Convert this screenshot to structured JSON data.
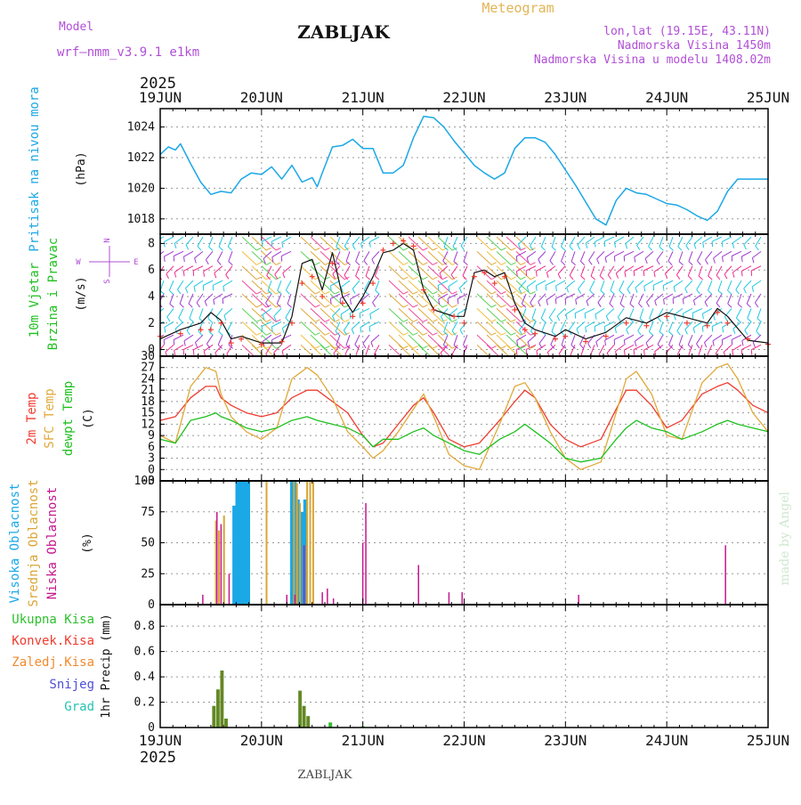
{
  "header": {
    "model_label": "Model",
    "model_value": "wrf—nmm_v3.9.1  e1km",
    "station": "ZABLJAK",
    "product": "Meteogram",
    "coords": "lon,lat (19.15E, 43.11N)",
    "altitude": "Nadmorska Visina 1450m",
    "model_altitude": "Nadmorska Visina u modelu 1408.02m",
    "year_top": "2025",
    "year_bottom": "2025",
    "footer_station": "ZABLJAK",
    "credit": "made by Angel"
  },
  "colors": {
    "purple": "#b14fd6",
    "gold": "#e2b455",
    "pressure": "#1ba8e6",
    "t2m": "#ef3b2f",
    "sfc": "#e0a93a",
    "dew": "#1ec01e",
    "cloud_high": "#1ba8e6",
    "cloud_mid": "#d9a635",
    "cloud_low": "#c4168e",
    "precip_total": "#2ec02e",
    "precip_conv": "#ef3b2f",
    "precip_frozen": "#f08a2c",
    "snow": "#4e4ed8",
    "graupel": "#25c3b3"
  },
  "panel_labels": {
    "pressure": [
      "Pritisak na nivou mora",
      "(hPa)"
    ],
    "wind": [
      "10m Vjetar",
      "Brzina i Pravac",
      "(m/s)"
    ],
    "compass": [
      "N",
      "S",
      "W",
      "E"
    ],
    "temp": [
      "2m Temp",
      "SFC Temp",
      "dewpt Temp",
      "(C)"
    ],
    "cloud": [
      "Visoka Oblacnost",
      "Srednja Oblacnost",
      "Niska Oblacnost",
      "(%)"
    ],
    "precip": [
      "Ukupna Kisa",
      "Konvek.Kisa",
      "Zaledj.Kisa",
      "Snijeg",
      "Grad",
      "1hr Precip (mm)"
    ]
  },
  "chart_data": [
    {
      "type": "line",
      "name": "pressure",
      "xlabel": "",
      "ylabel": "(hPa)",
      "x_categories": [
        "19JUN",
        "20JUN",
        "21JUN",
        "22JUN",
        "23JUN",
        "24JUN",
        "25JUN"
      ],
      "yticks": [
        1018,
        1020,
        1022,
        1024
      ],
      "ylim": [
        1017,
        1025.2
      ],
      "x_days": [
        0,
        0.08,
        0.15,
        0.2,
        0.3,
        0.4,
        0.5,
        0.6,
        0.7,
        0.8,
        0.9,
        1.0,
        1.1,
        1.2,
        1.3,
        1.4,
        1.5,
        1.55,
        1.6,
        1.7,
        1.8,
        1.9,
        2.0,
        2.1,
        2.2,
        2.3,
        2.4,
        2.5,
        2.6,
        2.7,
        2.8,
        2.9,
        3.0,
        3.1,
        3.2,
        3.3,
        3.4,
        3.5,
        3.6,
        3.7,
        3.8,
        3.9,
        4.0,
        4.1,
        4.2,
        4.3,
        4.4,
        4.5,
        4.6,
        4.7,
        4.8,
        4.9,
        5.0,
        5.1,
        5.2,
        5.3,
        5.4,
        5.5,
        5.6,
        5.7,
        5.8,
        5.9,
        6.0
      ],
      "series": [
        {
          "values": [
            1022.2,
            1022.7,
            1022.5,
            1022.9,
            1021.6,
            1020.4,
            1019.6,
            1019.8,
            1019.7,
            1020.6,
            1021.0,
            1020.9,
            1021.4,
            1020.6,
            1021.5,
            1020.4,
            1020.7,
            1020.1,
            1021.0,
            1022.7,
            1022.8,
            1023.2,
            1022.6,
            1022.6,
            1021.0,
            1021.0,
            1021.5,
            1023.3,
            1024.7,
            1024.6,
            1024.0,
            1023.1,
            1022.3,
            1021.5,
            1021.0,
            1020.6,
            1021.0,
            1022.6,
            1023.3,
            1023.3,
            1023.0,
            1022.2,
            1021.2,
            1020.2,
            1019.1,
            1018.0,
            1017.6,
            1019.2,
            1020.0,
            1019.7,
            1019.6,
            1019.3,
            1019.0,
            1018.9,
            1018.6,
            1018.2,
            1017.9,
            1018.5,
            1019.8,
            1020.6,
            1020.6,
            1020.6,
            1020.6
          ]
        }
      ]
    },
    {
      "type": "line",
      "name": "wind_speed",
      "xlabel": "",
      "ylabel": "(m/s)",
      "yticks": [
        0,
        2,
        4,
        6,
        8
      ],
      "ylim": [
        -0.5,
        8.7
      ],
      "x_days": [
        0,
        0.2,
        0.4,
        0.5,
        0.6,
        0.7,
        0.8,
        1.0,
        1.2,
        1.3,
        1.4,
        1.5,
        1.6,
        1.7,
        1.8,
        1.9,
        2.0,
        2.1,
        2.2,
        2.3,
        2.4,
        2.5,
        2.6,
        2.7,
        2.9,
        3.0,
        3.1,
        3.2,
        3.3,
        3.4,
        3.5,
        3.6,
        3.7,
        3.9,
        4.0,
        4.2,
        4.4,
        4.6,
        4.8,
        5.0,
        5.2,
        5.4,
        5.5,
        5.6,
        5.8,
        6.0
      ],
      "series": [
        {
          "name": "speed",
          "values": [
            0.8,
            1.5,
            2.0,
            2.8,
            2.2,
            0.8,
            1.0,
            0.5,
            0.5,
            2.5,
            6.5,
            6.8,
            4.5,
            7.3,
            4.0,
            2.8,
            4.0,
            5.5,
            7.3,
            7.5,
            8.0,
            7.5,
            4.5,
            3.0,
            2.5,
            2.5,
            5.8,
            6.0,
            5.5,
            5.8,
            3.5,
            2.0,
            1.5,
            1.0,
            1.5,
            0.8,
            1.3,
            2.4,
            2.0,
            2.8,
            2.4,
            2.0,
            3.1,
            2.5,
            0.7,
            0.5
          ]
        },
        {
          "name": "gust",
          "values": [
            1.0,
            1.2,
            1.5,
            1.5,
            2.0,
            0.5,
            0.8,
            0.4,
            0.6,
            2.0,
            5.0,
            5.5,
            4.0,
            6.5,
            3.5,
            2.5,
            3.5,
            5.0,
            7.5,
            8.0,
            8.2,
            7.8,
            4.5,
            3.0,
            2.5,
            2.0,
            5.5,
            5.8,
            5.0,
            5.5,
            3.0,
            1.5,
            1.2,
            0.8,
            1.0,
            0.6,
            1.0,
            2.0,
            1.8,
            2.5,
            2.0,
            1.8,
            2.8,
            2.0,
            0.8,
            0.4
          ]
        }
      ]
    },
    {
      "type": "line",
      "name": "temperature",
      "xlabel": "",
      "ylabel": "(C)",
      "yticks": [
        -3,
        0,
        3,
        6,
        9,
        12,
        15,
        18,
        21,
        24,
        27,
        30
      ],
      "ylim": [
        -3,
        30
      ],
      "x_days": [
        0,
        0.15,
        0.3,
        0.45,
        0.55,
        0.6,
        0.7,
        0.85,
        1.0,
        1.15,
        1.3,
        1.45,
        1.55,
        1.7,
        1.85,
        2.0,
        2.1,
        2.2,
        2.35,
        2.5,
        2.6,
        2.7,
        2.85,
        3.0,
        3.15,
        3.35,
        3.5,
        3.6,
        3.7,
        3.85,
        4.0,
        4.15,
        4.35,
        4.5,
        4.6,
        4.7,
        4.85,
        5.0,
        5.15,
        5.35,
        5.5,
        5.6,
        5.7,
        5.85,
        6.0
      ],
      "series": [
        {
          "name": "2m Temp",
          "values": [
            13,
            14,
            19,
            22,
            22,
            19,
            17,
            15,
            14,
            15,
            19,
            21,
            21,
            18,
            15,
            9,
            6,
            7,
            12,
            17,
            19,
            15,
            8,
            6,
            7,
            13,
            18,
            21,
            19,
            12,
            8,
            6,
            8,
            16,
            21,
            21,
            17,
            11,
            13,
            20,
            22,
            23,
            21,
            17,
            15
          ]
        },
        {
          "name": "SFC Temp",
          "values": [
            9,
            7,
            22,
            27,
            26,
            20,
            14,
            10,
            8,
            11,
            24,
            27,
            25,
            19,
            10,
            6,
            3,
            5,
            10,
            16,
            20,
            14,
            4,
            1,
            0,
            12,
            22,
            23,
            19,
            10,
            3,
            0,
            2,
            15,
            24,
            26,
            20,
            9,
            8,
            23,
            27,
            28,
            24,
            15,
            10
          ]
        },
        {
          "name": "dewpt Temp",
          "values": [
            8,
            7,
            13,
            14,
            15,
            14,
            13,
            11,
            10,
            11,
            13,
            14,
            13,
            12,
            11,
            9,
            6,
            8,
            8,
            10,
            11,
            9,
            7,
            5,
            4,
            8,
            10,
            12,
            10,
            7,
            3,
            2,
            3,
            8,
            11,
            13,
            11,
            10,
            8,
            10,
            12,
            13,
            12,
            11,
            10
          ]
        }
      ]
    },
    {
      "type": "bar",
      "name": "cloud_cover",
      "xlabel": "",
      "ylabel": "(%)",
      "yticks": [
        0,
        25,
        50,
        75,
        100
      ],
      "ylim": [
        0,
        100
      ],
      "series": [
        {
          "name": "Visoka Oblacnost",
          "bars": [
            [
              0.73,
              80
            ],
            [
              0.76,
              100
            ],
            [
              0.79,
              100
            ],
            [
              0.82,
              100
            ],
            [
              0.85,
              100
            ],
            [
              0.87,
              100
            ],
            [
              1.3,
              100
            ],
            [
              1.33,
              100
            ],
            [
              1.36,
              85
            ],
            [
              1.4,
              75
            ],
            [
              1.43,
              85
            ]
          ]
        },
        {
          "name": "Srednja Oblacnost",
          "bars": [
            [
              0.55,
              68
            ],
            [
              0.58,
              60
            ],
            [
              0.63,
              72
            ],
            [
              1.05,
              100
            ],
            [
              1.32,
              100
            ],
            [
              1.35,
              98
            ],
            [
              1.38,
              82
            ],
            [
              1.45,
              100
            ],
            [
              1.48,
              100
            ],
            [
              1.51,
              100
            ]
          ]
        },
        {
          "name": "Niska Oblacnost",
          "bars": [
            [
              0.42,
              8
            ],
            [
              0.56,
              75
            ],
            [
              0.6,
              65
            ],
            [
              0.68,
              25
            ],
            [
              1.25,
              8
            ],
            [
              1.33,
              8
            ],
            [
              1.42,
              48
            ],
            [
              1.6,
              10
            ],
            [
              1.65,
              13
            ],
            [
              1.71,
              5
            ],
            [
              2.0,
              50
            ],
            [
              2.03,
              82
            ],
            [
              2.55,
              32
            ],
            [
              2.85,
              10
            ],
            [
              2.98,
              10
            ],
            [
              4.13,
              8
            ],
            [
              5.58,
              48
            ]
          ]
        }
      ]
    },
    {
      "type": "bar",
      "name": "precipitation",
      "xlabel": "",
      "ylabel": "1hr Precip (mm)",
      "yticks": [
        0,
        0.2,
        0.4,
        0.6,
        0.8
      ],
      "ylim": [
        0,
        0.97
      ],
      "series": [
        {
          "name": "Ukupna Kisa",
          "bars": [
            [
              0.53,
              0.17
            ],
            [
              0.57,
              0.3
            ],
            [
              0.61,
              0.45
            ],
            [
              0.65,
              0.07
            ],
            [
              1.38,
              0.29
            ],
            [
              1.42,
              0.17
            ],
            [
              1.46,
              0.09
            ],
            [
              1.68,
              0.04
            ],
            [
              2.0,
              0.01
            ]
          ]
        },
        {
          "name": "Konvek.Kisa",
          "bars": [
            [
              0.53,
              0.17
            ],
            [
              0.57,
              0.3
            ],
            [
              0.61,
              0.45
            ],
            [
              0.65,
              0.07
            ],
            [
              1.38,
              0.29
            ],
            [
              1.42,
              0.17
            ],
            [
              1.46,
              0.09
            ]
          ]
        }
      ]
    }
  ]
}
